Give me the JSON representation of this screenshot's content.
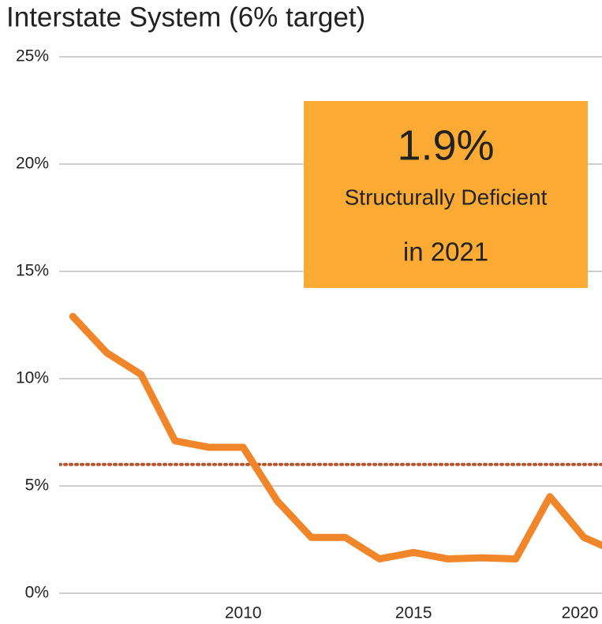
{
  "chart_data": {
    "type": "line",
    "title": "Interstate System (6% target)",
    "x": [
      2005,
      2006,
      2007,
      2008,
      2009,
      2010,
      2011,
      2012,
      2013,
      2014,
      2015,
      2016,
      2017,
      2018,
      2019,
      2020,
      2021
    ],
    "series": [
      {
        "name": "Interstate System",
        "color": "#f18529",
        "values": [
          12.9,
          11.2,
          10.2,
          7.1,
          6.8,
          6.8,
          4.3,
          2.6,
          2.6,
          1.6,
          1.9,
          1.6,
          1.65,
          1.6,
          4.5,
          2.6,
          1.9
        ]
      }
    ],
    "target": {
      "value": 6,
      "color": "#b5532a"
    },
    "xlim": [
      2004.6,
      2020.53
    ],
    "xticks": [
      2010,
      2015,
      2020
    ],
    "ylim": [
      0,
      25
    ],
    "yticks": [
      {
        "value": 0,
        "label": "0%"
      },
      {
        "value": 5,
        "label": "5%"
      },
      {
        "value": 10,
        "label": "10%"
      },
      {
        "value": 15,
        "label": "15%"
      },
      {
        "value": 20,
        "label": "20%"
      },
      {
        "value": 25,
        "label": "25%"
      }
    ],
    "grid": true,
    "annotation": {
      "headline": "1.9%",
      "line1": "Structurally Deficient",
      "line2": "in 2021",
      "color": "#fbab33"
    }
  }
}
